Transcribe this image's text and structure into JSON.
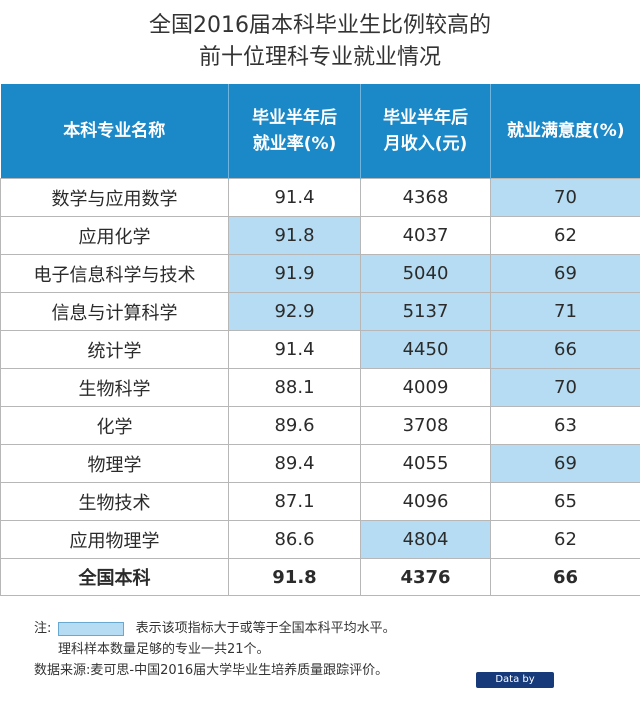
{
  "title_line1": "全国2016届本科毕业生比例较高的",
  "title_line2": "前十位理科专业就业情况",
  "headers": {
    "major": "本科专业名称",
    "employment_line1": "毕业半年后",
    "employment_line2": "就业率(%)",
    "income_line1": "毕业半年后",
    "income_line2": "月收入(元)",
    "satisfaction": "就业满意度(%)"
  },
  "chart_data": {
    "type": "table",
    "title": "全国2016届本科毕业生比例较高的前十位理科专业就业情况",
    "columns": [
      "本科专业名称",
      "毕业半年后就业率(%)",
      "毕业半年后月收入(元)",
      "就业满意度(%)"
    ],
    "rows": [
      {
        "major": "数学与应用数学",
        "employment": "91.4",
        "income": "4368",
        "satisfaction": "70",
        "hl": [
          false,
          false,
          true
        ]
      },
      {
        "major": "应用化学",
        "employment": "91.8",
        "income": "4037",
        "satisfaction": "62",
        "hl": [
          true,
          false,
          false
        ]
      },
      {
        "major": "电子信息科学与技术",
        "employment": "91.9",
        "income": "5040",
        "satisfaction": "69",
        "hl": [
          true,
          true,
          true
        ]
      },
      {
        "major": "信息与计算科学",
        "employment": "92.9",
        "income": "5137",
        "satisfaction": "71",
        "hl": [
          true,
          true,
          true
        ]
      },
      {
        "major": "统计学",
        "employment": "91.4",
        "income": "4450",
        "satisfaction": "66",
        "hl": [
          false,
          true,
          true
        ]
      },
      {
        "major": "生物科学",
        "employment": "88.1",
        "income": "4009",
        "satisfaction": "70",
        "hl": [
          false,
          false,
          true
        ]
      },
      {
        "major": "化学",
        "employment": "89.6",
        "income": "3708",
        "satisfaction": "63",
        "hl": [
          false,
          false,
          false
        ]
      },
      {
        "major": "物理学",
        "employment": "89.4",
        "income": "4055",
        "satisfaction": "69",
        "hl": [
          false,
          false,
          true
        ]
      },
      {
        "major": "生物技术",
        "employment": "87.1",
        "income": "4096",
        "satisfaction": "65",
        "hl": [
          false,
          false,
          false
        ]
      },
      {
        "major": "应用物理学",
        "employment": "86.6",
        "income": "4804",
        "satisfaction": "62",
        "hl": [
          false,
          true,
          false
        ]
      }
    ],
    "total": {
      "major": "全国本科",
      "employment": "91.8",
      "income": "4376",
      "satisfaction": "66"
    },
    "highlight_color": "#b5dcf2",
    "header_color": "#1b88c8"
  },
  "notes": {
    "label": "注:",
    "legend_text": "表示该项指标大于或等于全国本科平均水平。",
    "line2": "理科样本数量足够的专业一共21个。",
    "source": "数据来源:麦可思-中国2016届大学毕业生培养质量跟踪评价。"
  },
  "badge": "Data by MyCOS"
}
